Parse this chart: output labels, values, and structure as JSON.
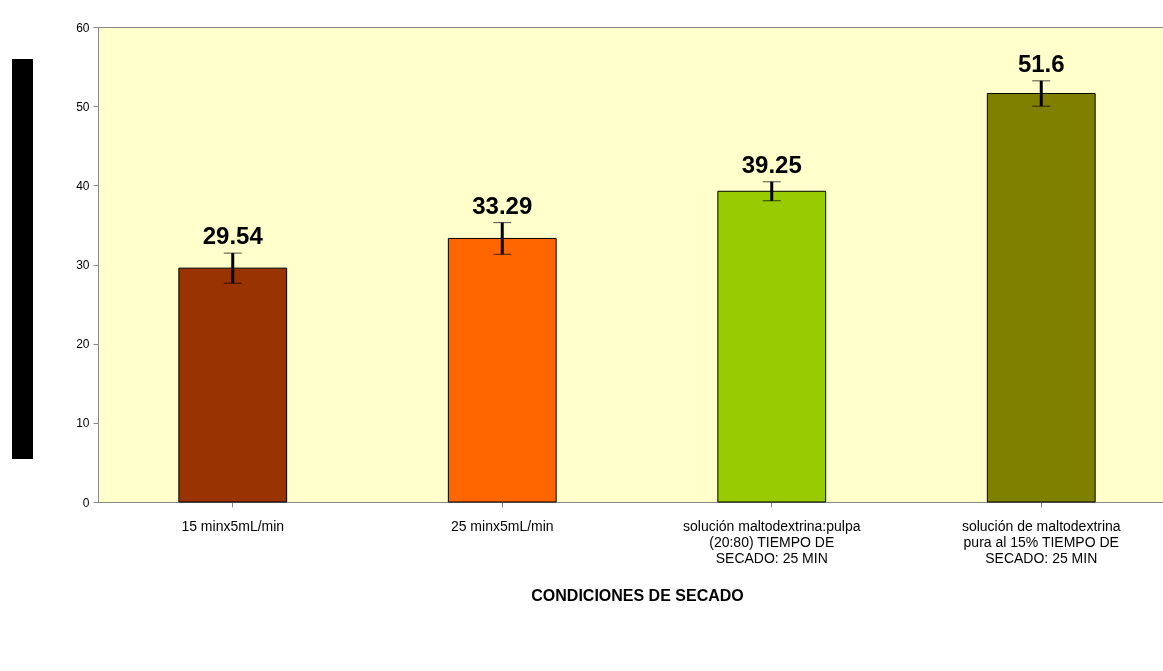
{
  "chart_data": {
    "type": "bar",
    "xlabel": "CONDICIONES DE SECADO",
    "categories": [
      "15 minx5mL/min",
      "25 minx5mL/min",
      "solución maltodextrina:pulpa (20:80) TIEMPO DE SECADO: 25 MIN",
      "solución de maltodextrina pura al 15% TIEMPO DE SECADO: 25 MIN"
    ],
    "values": [
      29.54,
      33.29,
      39.25,
      51.6
    ],
    "colors": [
      "#993300",
      "#ff6600",
      "#99cc00",
      "#808000"
    ],
    "errors": [
      1.9,
      2.0,
      1.2,
      1.6
    ],
    "data_labels": true,
    "ylim": [
      0,
      60
    ],
    "yticks": [
      0,
      10,
      20,
      30,
      40,
      50,
      60
    ],
    "grid": false,
    "legend": false
  }
}
